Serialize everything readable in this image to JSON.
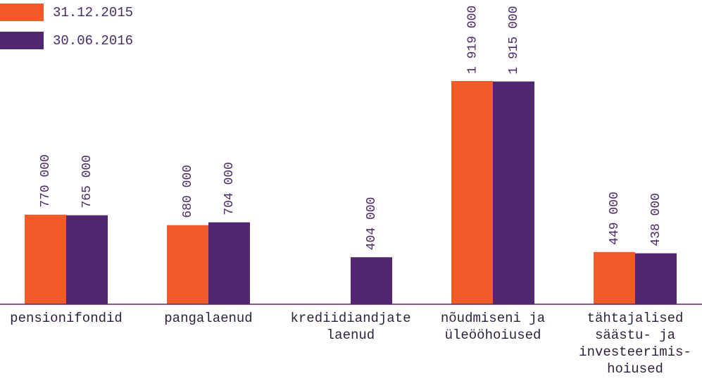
{
  "chart_data": {
    "type": "bar",
    "categories": [
      "pensionifondid",
      "pangalaenud",
      "krediidiandjate\nlaenud",
      "nõudmiseni ja\nüleööhoiused",
      "tähtajalised\nsäästu- ja\ninvesteerimis-\nhoiused"
    ],
    "series": [
      {
        "name": "31.12.2015",
        "color": "#f15a29",
        "values": [
          770000,
          680000,
          null,
          1919000,
          449000
        ],
        "value_labels": [
          "770 000",
          "680 000",
          null,
          "1 919 000",
          "449 000"
        ]
      },
      {
        "name": "30.06.2016",
        "color": "#51276f",
        "values": [
          765000,
          704000,
          404000,
          1915000,
          438000
        ],
        "value_labels": [
          "765 000",
          "704 000",
          "404 000",
          "1 915 000",
          "438 000"
        ]
      }
    ],
    "legend": "top-left"
  }
}
